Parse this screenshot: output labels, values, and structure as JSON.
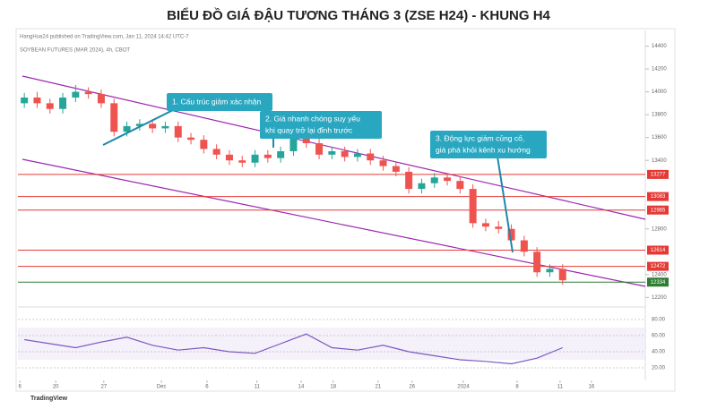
{
  "chart_data": {
    "type": "candlestick",
    "title": "BIỂU ĐỒ GIÁ ĐẬU TƯƠNG THÁNG 3 (ZSE  H24) - KHUNG H4",
    "publisher": "HangHua24 published on TradingView.com, Jan 11, 2024 14:42 UTC-7",
    "symbol": "SOYBEAN FUTURES (MAR 2024), 4h, CBOT",
    "logo": "TradingView",
    "up_color": "#26a69a",
    "down_color": "#ef5350",
    "x": [
      1,
      3,
      5,
      7,
      9,
      11,
      13,
      15,
      17,
      19,
      21,
      23,
      25,
      27,
      29,
      31,
      33,
      35,
      37,
      39,
      41,
      43,
      45,
      47,
      49,
      51,
      53,
      55,
      57,
      59,
      61,
      63,
      65,
      67,
      69,
      71,
      73,
      75,
      77,
      79,
      81,
      83,
      85
    ],
    "open": [
      13900,
      13950,
      13900,
      13850,
      13950,
      14000,
      13980,
      13900,
      13650,
      13700,
      13720,
      13680,
      13700,
      13600,
      13580,
      13500,
      13450,
      13400,
      13380,
      13450,
      13420,
      13480,
      13600,
      13550,
      13450,
      13480,
      13430,
      13460,
      13400,
      13350,
      13300,
      13150,
      13200,
      13250,
      13220,
      13150,
      12850,
      12820,
      12800,
      12700,
      12600,
      12420,
      12450
    ],
    "close": [
      13950,
      13900,
      13850,
      13950,
      14000,
      13980,
      13900,
      13650,
      13700,
      13720,
      13680,
      13700,
      13600,
      13580,
      13500,
      13450,
      13400,
      13380,
      13450,
      13420,
      13480,
      13600,
      13550,
      13450,
      13480,
      13430,
      13460,
      13400,
      13350,
      13300,
      13150,
      13200,
      13250,
      13220,
      13150,
      12850,
      12820,
      12800,
      12700,
      12600,
      12420,
      12450,
      12350
    ],
    "high": [
      13990,
      14000,
      13940,
      13990,
      14060,
      14040,
      14020,
      13940,
      13740,
      13760,
      13760,
      13740,
      13740,
      13640,
      13620,
      13540,
      13490,
      13440,
      13490,
      13490,
      13520,
      13640,
      13640,
      13590,
      13520,
      13520,
      13500,
      13500,
      13440,
      13390,
      13340,
      13240,
      13290,
      13290,
      13260,
      13190,
      12890,
      12870,
      12840,
      12740,
      12640,
      12490,
      12490
    ],
    "low": [
      13860,
      13860,
      13810,
      13810,
      13910,
      13940,
      13860,
      13610,
      13610,
      13660,
      13640,
      13640,
      13560,
      13540,
      13460,
      13410,
      13360,
      13340,
      13340,
      13380,
      13380,
      13440,
      13510,
      13410,
      13410,
      13390,
      13390,
      13360,
      13310,
      13260,
      13110,
      13110,
      13160,
      13180,
      13110,
      12810,
      12780,
      12760,
      12660,
      12560,
      12380,
      12380,
      12310
    ],
    "xlim": [
      0,
      100
    ],
    "xticks": [
      {
        "value": 0.3,
        "label": "6"
      },
      {
        "value": 5.9,
        "label": "20"
      },
      {
        "value": 13.4,
        "label": "27"
      },
      {
        "value": 22.4,
        "label": "Dec"
      },
      {
        "value": 29.5,
        "label": "6"
      },
      {
        "value": 37.3,
        "label": "11"
      },
      {
        "value": 44.2,
        "label": "14"
      },
      {
        "value": 49.2,
        "label": "18"
      },
      {
        "value": 56.2,
        "label": "21"
      },
      {
        "value": 61.5,
        "label": "26"
      },
      {
        "value": 69.5,
        "label": "2024"
      },
      {
        "value": 77.9,
        "label": "8"
      },
      {
        "value": 84.6,
        "label": "11"
      },
      {
        "value": 89.5,
        "label": "16"
      }
    ],
    "ylim": [
      12140,
      14420
    ],
    "yticks": [
      12200,
      12400,
      12800,
      13400,
      13600,
      13800,
      14000,
      14200,
      14400
    ],
    "levels": [
      {
        "value": 13277,
        "color": "#e53935"
      },
      {
        "value": 13083,
        "color": "#e53935"
      },
      {
        "value": 12965,
        "color": "#e53935"
      },
      {
        "value": 12614,
        "color": "#e53935"
      },
      {
        "value": 12472,
        "color": "#e53935"
      },
      {
        "value": 12334,
        "color": "#2e7d32"
      }
    ],
    "annotations": [
      {
        "lines": [
          "1. Cấu trúc giảm xác nhận"
        ]
      },
      {
        "lines": [
          "2. Giá nhanh chóng suy yếu",
          "khi quay trở lại đỉnh trước"
        ]
      },
      {
        "lines": [
          "3. Động lực giảm củng cố,",
          "giá phá khỏi kênh xu hướng"
        ]
      }
    ],
    "rsi": {
      "color": "#7e57c2",
      "x": [
        1,
        5,
        9,
        13,
        17,
        21,
        25,
        29,
        33,
        37,
        41,
        45,
        49,
        53,
        57,
        61,
        65,
        69,
        73,
        77,
        81,
        85
      ],
      "values": [
        55,
        50,
        45,
        52,
        58,
        48,
        42,
        45,
        40,
        38,
        50,
        62,
        45,
        42,
        48,
        40,
        35,
        30,
        28,
        25,
        32,
        45
      ],
      "ylim": [
        10,
        90
      ],
      "yticks": [
        {
          "value": 80,
          "label": "80.00"
        },
        {
          "value": 60,
          "label": "60.00"
        },
        {
          "value": 40,
          "label": "40.00"
        },
        {
          "value": 20,
          "label": "20.00"
        }
      ]
    }
  }
}
